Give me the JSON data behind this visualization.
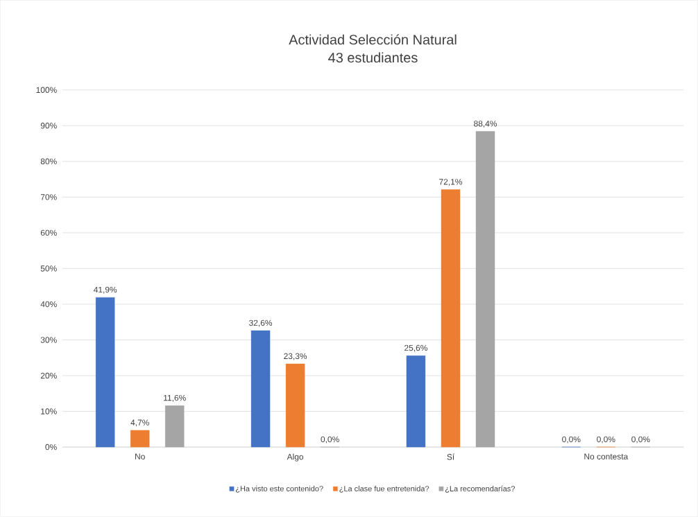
{
  "chart_data": {
    "type": "bar",
    "title": "Actividad Selección Natural",
    "subtitle": "43 estudiantes",
    "categories": [
      "No",
      "Algo",
      "Sí",
      "No contesta"
    ],
    "series": [
      {
        "name": "¿Ha visto este contenido?",
        "color": "#4472c4",
        "values": [
          41.9,
          32.6,
          25.6,
          0
        ],
        "value_labels": [
          "41,9%",
          "32,6%",
          "25,6%",
          "0,0%"
        ]
      },
      {
        "name": "¿La clase fue entretenida?",
        "color": "#ed7d31",
        "values": [
          4.7,
          23.3,
          72.1,
          0
        ],
        "value_labels": [
          "4,7%",
          "23,3%",
          "72,1%",
          "0,0%"
        ]
      },
      {
        "name": "¿La recomendarías?",
        "color": "#a5a5a5",
        "values": [
          11.6,
          0,
          88.4,
          0
        ],
        "value_labels": [
          "11,6%",
          "0,0%",
          "88,4%",
          "0,0%"
        ]
      }
    ],
    "ylim": [
      0,
      100
    ],
    "yticks": [
      {
        "value": 0,
        "label": "0%"
      },
      {
        "value": 10,
        "label": "10%"
      },
      {
        "value": 20,
        "label": "20%"
      },
      {
        "value": 30,
        "label": "30%"
      },
      {
        "value": 40,
        "label": "40%"
      },
      {
        "value": 50,
        "label": "50%"
      },
      {
        "value": 60,
        "label": "60%"
      },
      {
        "value": 70,
        "label": "70%"
      },
      {
        "value": 80,
        "label": "80%"
      },
      {
        "value": 90,
        "label": "90%"
      },
      {
        "value": 100,
        "label": "100%"
      }
    ],
    "grid": "y",
    "legend": "bottom"
  }
}
